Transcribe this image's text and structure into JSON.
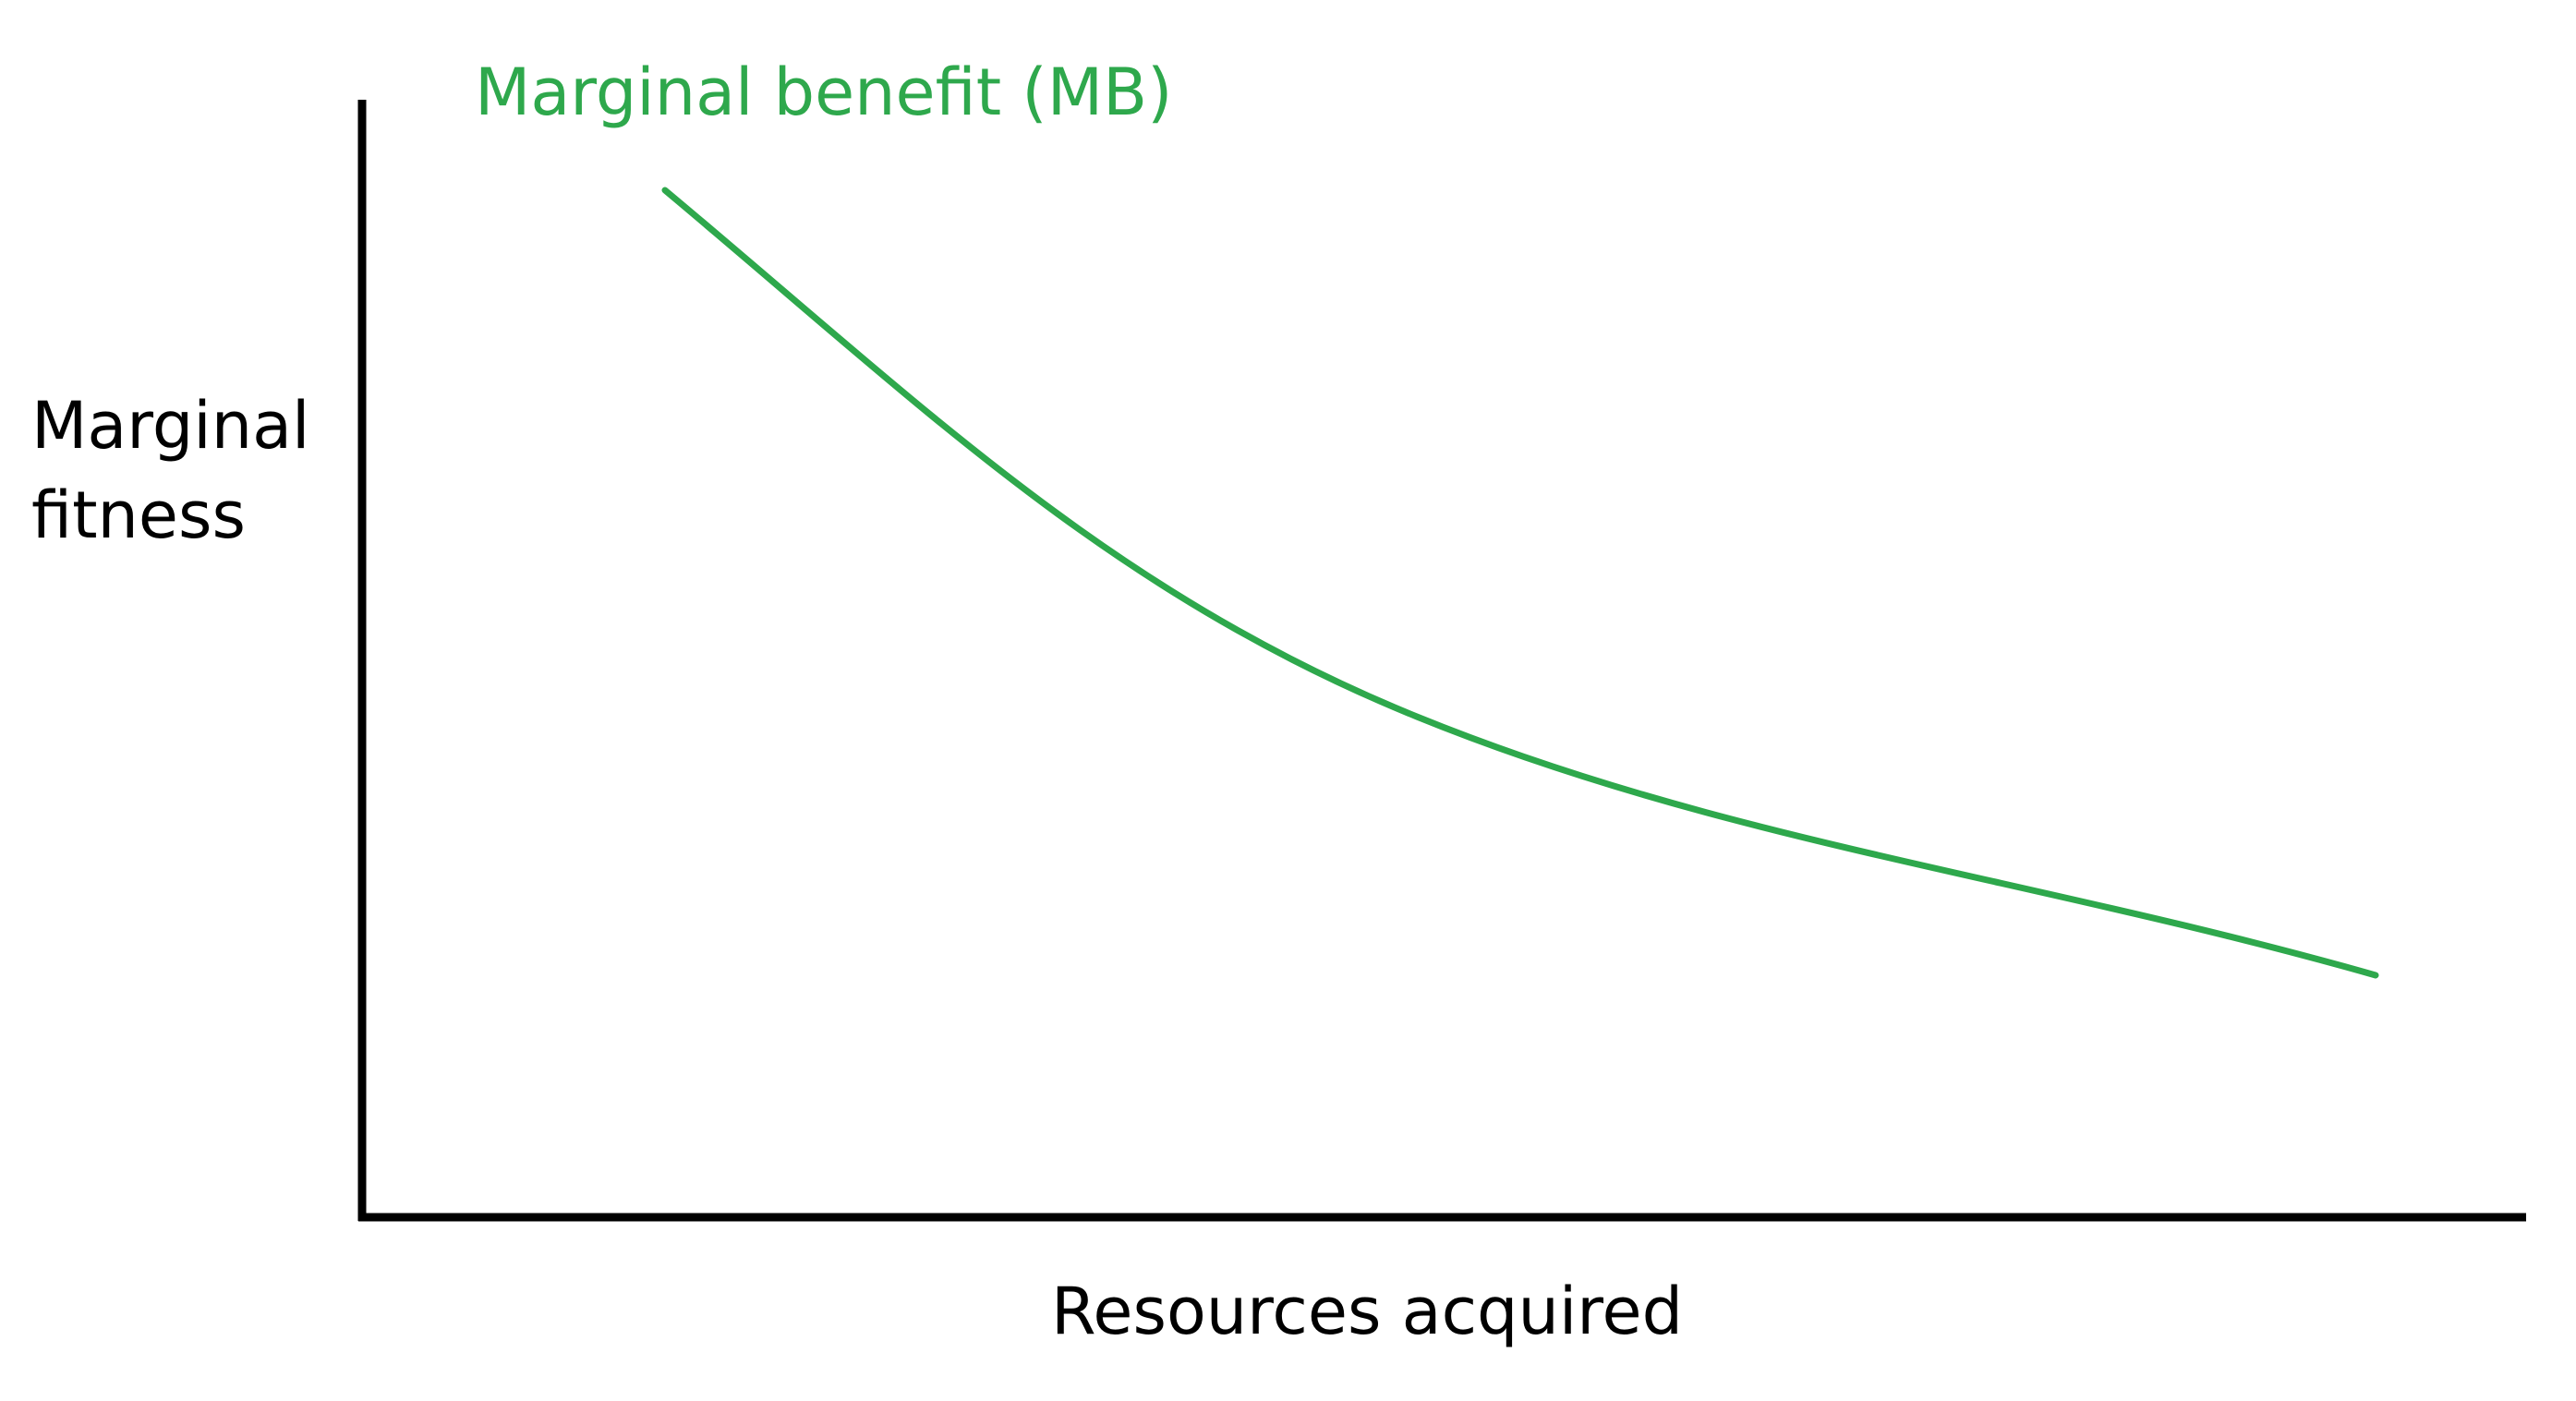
{
  "curve_label": "Marginal benefit (MB)",
  "y_axis_label": [
    "Marginal",
    "fitness"
  ],
  "x_axis_label": "Resources acquired"
}
